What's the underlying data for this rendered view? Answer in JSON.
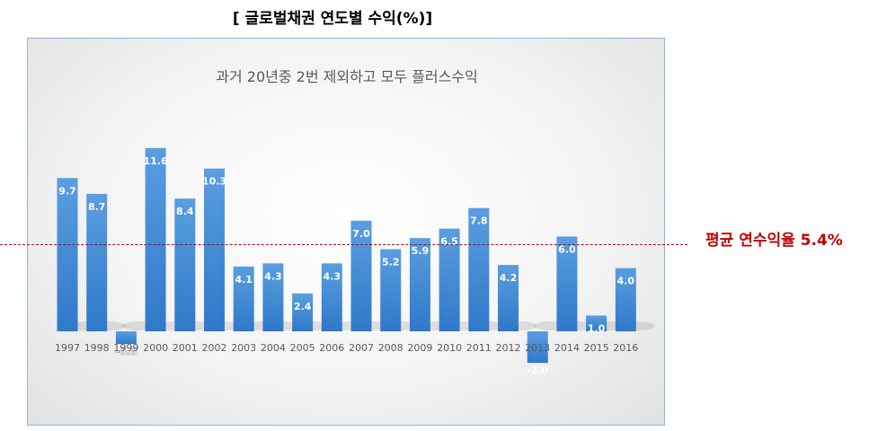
{
  "page": {
    "heading": "[ 글로벌채권 연도별 수익(%)]",
    "average_label": "평균 연수익율 5.4%"
  },
  "colors": {
    "bar_top": "#5a9ee0",
    "bar_bottom": "#2f79c9",
    "average_line": "#c00000",
    "frame_border": "#8ab4e0"
  },
  "chart_data": {
    "type": "bar",
    "title": "과거 20년중 2번 제외하고 모두 플러스수익",
    "xlabel": "",
    "ylabel": "",
    "categories": [
      "1997",
      "1998",
      "1999",
      "2000",
      "2001",
      "2002",
      "2003",
      "2004",
      "2005",
      "2006",
      "2007",
      "2008",
      "2009",
      "2010",
      "2011",
      "2012",
      "2013",
      "2014",
      "2015",
      "2016"
    ],
    "value_labels": [
      "9.7",
      "8.7",
      "-0.8",
      "11.6",
      "8.4",
      "10.3",
      "4.1",
      "4.3",
      "2.4",
      "4.3",
      "7.0",
      "5.2",
      "5.9",
      "6.5",
      "7.8",
      "4.2",
      "-2.0",
      "6.0",
      "1.0",
      "4.0"
    ],
    "values": [
      9.7,
      8.7,
      -0.8,
      11.6,
      8.4,
      10.3,
      4.1,
      4.3,
      2.4,
      4.3,
      7.0,
      5.2,
      5.9,
      6.5,
      7.8,
      4.2,
      -2.0,
      6.0,
      1.0,
      4.0
    ],
    "average": 5.4,
    "ylim": [
      -2,
      12
    ],
    "grid": false,
    "legend": "none"
  }
}
